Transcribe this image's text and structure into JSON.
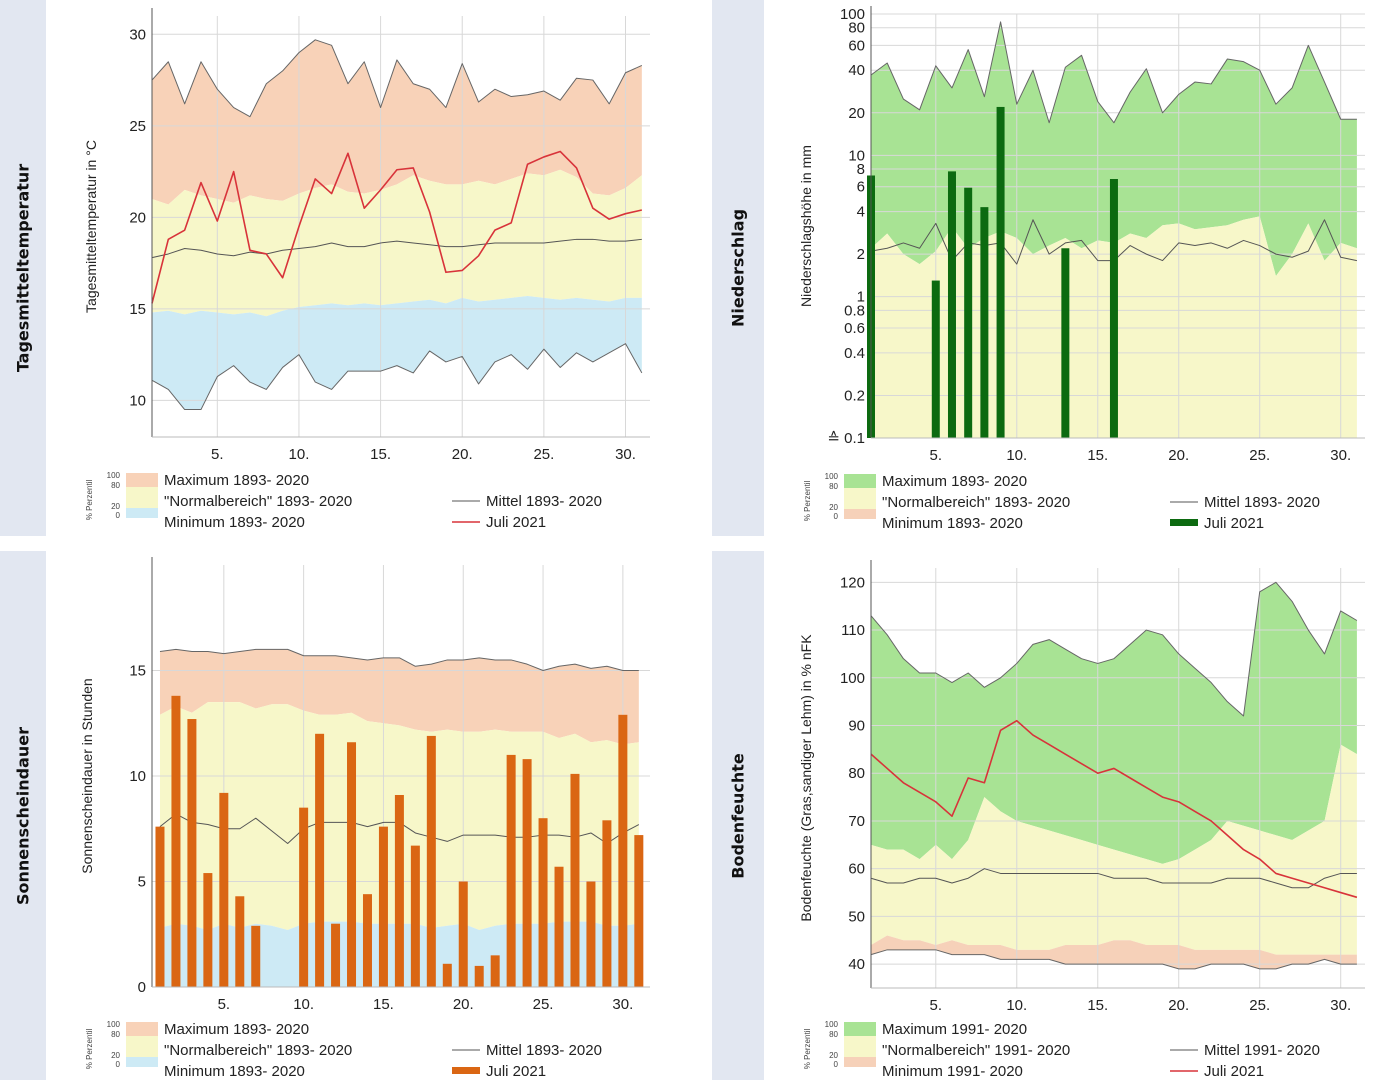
{
  "chart_data": [
    {
      "id": "temp",
      "type": "area",
      "section_label": "Tagesmitteltemperatur",
      "ylabel": "Tagesmitteltemperatur in °C",
      "xlabel": "",
      "log_scale": false,
      "ylim": [
        8,
        31
      ],
      "xlim": [
        1,
        31.5
      ],
      "yticks": [
        10,
        15,
        20,
        25,
        30
      ],
      "yticklabels": [
        "10",
        "15",
        "20",
        "25",
        "30"
      ],
      "xticks": [
        5,
        10,
        15,
        20,
        25,
        30
      ],
      "xticklabels": [
        "5.",
        "10.",
        "15.",
        "20.",
        "25.",
        "30."
      ],
      "days": [
        1,
        2,
        3,
        4,
        5,
        6,
        7,
        8,
        9,
        10,
        11,
        12,
        13,
        14,
        15,
        16,
        17,
        18,
        19,
        20,
        21,
        22,
        23,
        24,
        25,
        26,
        27,
        28,
        29,
        30,
        31
      ],
      "band_max": [
        27.5,
        28.5,
        26.2,
        28.5,
        27.0,
        26.0,
        25.5,
        27.3,
        28.0,
        29.0,
        29.7,
        29.4,
        27.3,
        28.5,
        26.0,
        28.6,
        27.3,
        27.0,
        26.0,
        28.4,
        26.3,
        27.0,
        26.6,
        26.7,
        26.9,
        26.4,
        27.6,
        27.5,
        26.2,
        27.9,
        28.3
      ],
      "band_normal_upper": [
        21.0,
        20.7,
        21.5,
        21.2,
        21.0,
        20.8,
        21.2,
        21.0,
        20.9,
        21.3,
        21.6,
        21.8,
        21.4,
        21.3,
        21.5,
        21.8,
        22.3,
        22.0,
        21.8,
        21.8,
        22.0,
        21.8,
        22.1,
        22.4,
        22.3,
        22.6,
        22.2,
        21.3,
        21.2,
        21.6,
        22.3
      ],
      "band_normal_lower": [
        14.8,
        14.9,
        14.7,
        14.9,
        14.8,
        14.7,
        14.8,
        14.6,
        14.9,
        15.1,
        15.2,
        15.3,
        15.2,
        15.3,
        15.2,
        15.3,
        15.4,
        15.5,
        15.3,
        15.6,
        15.4,
        15.5,
        15.6,
        15.7,
        15.6,
        15.5,
        15.6,
        15.5,
        15.4,
        15.6,
        15.6
      ],
      "band_min": [
        11.1,
        10.6,
        9.5,
        9.5,
        11.3,
        11.9,
        11.0,
        10.6,
        11.8,
        12.5,
        11.0,
        10.6,
        11.6,
        11.6,
        11.6,
        11.9,
        11.5,
        12.7,
        12.1,
        12.4,
        10.9,
        12.1,
        12.5,
        11.7,
        12.8,
        11.8,
        12.6,
        12.1,
        12.6,
        13.1,
        11.5
      ],
      "mean": [
        17.8,
        18.0,
        18.3,
        18.2,
        18.0,
        17.9,
        18.1,
        18.0,
        18.2,
        18.3,
        18.4,
        18.6,
        18.4,
        18.4,
        18.6,
        18.7,
        18.6,
        18.5,
        18.4,
        18.4,
        18.5,
        18.6,
        18.6,
        18.6,
        18.6,
        18.7,
        18.8,
        18.8,
        18.7,
        18.7,
        18.8
      ],
      "current": [
        15.3,
        18.8,
        19.3,
        21.9,
        19.8,
        22.5,
        18.2,
        18.0,
        16.7,
        19.5,
        22.1,
        21.3,
        23.5,
        20.5,
        21.5,
        22.6,
        22.7,
        20.3,
        17.0,
        17.1,
        17.9,
        19.3,
        19.7,
        22.9,
        23.3,
        23.6,
        22.7,
        20.5,
        19.9,
        20.2,
        20.4
      ],
      "current_style": "line",
      "colors": {
        "max": "#f8d2b8",
        "normal": "#f7f7c9",
        "min": "#cdeaf5",
        "mean": "#555555",
        "current": "#d8333a"
      },
      "legend": {
        "pct_axis_label": "% Perzentil",
        "pct_ticks": [
          "100",
          "80",
          "20",
          "0"
        ],
        "max_label": "Maximum 1893- 2020",
        "normal_label": "\"Normalbereich\" 1893- 2020",
        "min_label": "Minimum 1893- 2020",
        "mean_label": "Mittel 1893- 2020",
        "current_label": "Juli 2021"
      }
    },
    {
      "id": "precip",
      "type": "bar",
      "section_label": "Niederschlag",
      "ylabel": "Niederschlagshöhe in mm",
      "xlabel": "",
      "log_scale": true,
      "ylim": [
        0.1,
        100
      ],
      "xlim": [
        1,
        31.5
      ],
      "yticks": [
        0.1,
        0.2,
        0.4,
        0.6,
        0.8,
        1,
        2,
        4,
        6,
        8,
        10,
        20,
        40,
        60,
        80,
        100
      ],
      "yticklabels": [
        "≙ 0.1",
        "0.2",
        "0.4",
        "0.6",
        "0.8",
        "1",
        "2",
        "4",
        "6",
        "8",
        "10",
        "20",
        "40",
        "60",
        "80",
        "100"
      ],
      "xticks": [
        5,
        10,
        15,
        20,
        25,
        30
      ],
      "xticklabels": [
        "5.",
        "10.",
        "15.",
        "20.",
        "25.",
        "30."
      ],
      "days": [
        1,
        2,
        3,
        4,
        5,
        6,
        7,
        8,
        9,
        10,
        11,
        12,
        13,
        14,
        15,
        16,
        17,
        18,
        19,
        20,
        21,
        22,
        23,
        24,
        25,
        26,
        27,
        28,
        29,
        30,
        31
      ],
      "band_max": [
        37,
        45,
        25,
        21,
        43,
        30,
        56,
        26,
        88,
        23,
        40,
        17,
        42,
        51,
        24,
        17,
        28,
        41,
        20,
        27,
        33,
        32,
        48,
        46,
        40,
        23,
        30,
        60,
        33,
        18,
        18
      ],
      "band_normal_upper": [
        2.2,
        2.8,
        2.0,
        1.7,
        2.1,
        3.1,
        2.2,
        2.6,
        2.9,
        2.6,
        2.0,
        2.3,
        2.6,
        2.2,
        2.5,
        2.4,
        2.8,
        2.6,
        3.2,
        3.3,
        3.0,
        3.1,
        3.2,
        3.5,
        3.7,
        1.4,
        2.0,
        3.3,
        1.8,
        2.4,
        2.2
      ],
      "band_normal_lower": [
        0.1,
        0.1,
        0.1,
        0.1,
        0.1,
        0.1,
        0.1,
        0.1,
        0.1,
        0.1,
        0.1,
        0.1,
        0.1,
        0.1,
        0.1,
        0.1,
        0.1,
        0.1,
        0.1,
        0.1,
        0.1,
        0.1,
        0.1,
        0.1,
        0.1,
        0.1,
        0.1,
        0.1,
        0.1,
        0.1,
        0.1
      ],
      "band_min": [
        0.1,
        0.1,
        0.1,
        0.1,
        0.1,
        0.1,
        0.1,
        0.1,
        0.1,
        0.1,
        0.1,
        0.1,
        0.1,
        0.1,
        0.1,
        0.1,
        0.1,
        0.1,
        0.1,
        0.1,
        0.1,
        0.1,
        0.1,
        0.1,
        0.1,
        0.1,
        0.1,
        0.1,
        0.1,
        0.1,
        0.1
      ],
      "mean": [
        2.1,
        2.2,
        2.4,
        2.2,
        3.3,
        1.8,
        2.4,
        2.3,
        2.4,
        1.7,
        3.5,
        2.0,
        2.4,
        2.5,
        1.8,
        1.8,
        2.3,
        2.0,
        1.8,
        2.4,
        2.3,
        2.4,
        2.2,
        2.5,
        2.3,
        2.0,
        1.9,
        2.1,
        3.5,
        1.9,
        1.8
      ],
      "current": [
        7.2,
        0,
        0,
        0,
        1.3,
        7.7,
        5.9,
        4.3,
        22,
        0,
        0,
        0,
        2.2,
        0,
        0,
        6.8,
        0,
        0,
        0,
        0,
        0,
        0,
        0,
        0,
        0,
        0,
        0,
        0,
        0,
        0,
        0
      ],
      "current_style": "bars",
      "colors": {
        "max": "#a8e394",
        "normal": "#f7f7c9",
        "min": "#f6d1b9",
        "mean": "#555555",
        "current": "#0c6a10"
      },
      "legend": {
        "pct_axis_label": "% Perzentil",
        "pct_ticks": [
          "100",
          "80",
          "20",
          "0"
        ],
        "max_label": "Maximum 1893- 2020",
        "normal_label": "\"Normalbereich\" 1893- 2020",
        "min_label": "Minimum 1893- 2020",
        "mean_label": "Mittel 1893- 2020",
        "current_label": "Juli 2021"
      }
    },
    {
      "id": "sun",
      "type": "bar",
      "section_label": "Sonnenscheindauer",
      "ylabel": "Sonnenscheindauer in Stunden",
      "xlabel": "",
      "log_scale": false,
      "ylim": [
        0,
        20
      ],
      "xlim": [
        0.5,
        31.7
      ],
      "yticks": [
        0,
        5,
        10,
        15
      ],
      "yticklabels": [
        "0",
        "5",
        "10",
        "15"
      ],
      "xticks": [
        5,
        10,
        15,
        20,
        25,
        30
      ],
      "xticklabels": [
        "5.",
        "10.",
        "15.",
        "20.",
        "25.",
        "30."
      ],
      "days": [
        1,
        2,
        3,
        4,
        5,
        6,
        7,
        8,
        9,
        10,
        11,
        12,
        13,
        14,
        15,
        16,
        17,
        18,
        19,
        20,
        21,
        22,
        23,
        24,
        25,
        26,
        27,
        28,
        29,
        30,
        31
      ],
      "band_max": [
        15.9,
        16.0,
        15.9,
        15.9,
        15.8,
        15.9,
        16.0,
        16.0,
        16.0,
        15.7,
        15.7,
        15.7,
        15.6,
        15.5,
        15.6,
        15.6,
        15.2,
        15.3,
        15.5,
        15.5,
        15.6,
        15.5,
        15.5,
        15.3,
        15.0,
        15.2,
        15.3,
        15.1,
        15.2,
        15.0,
        15.0
      ],
      "band_normal_upper": [
        12.9,
        13.3,
        13.0,
        13.5,
        13.5,
        13.5,
        13.2,
        13.4,
        13.4,
        13.1,
        12.9,
        12.9,
        13.0,
        12.6,
        12.5,
        12.4,
        12.2,
        12.1,
        12.2,
        12.1,
        12.1,
        12.2,
        12.1,
        12.1,
        12.1,
        11.8,
        12.0,
        11.6,
        11.7,
        11.5,
        11.6
      ],
      "band_normal_lower": [
        2.8,
        3.0,
        2.9,
        2.7,
        3.0,
        2.8,
        3.0,
        2.9,
        2.7,
        3.0,
        3.1,
        3.1,
        3.1,
        3.0,
        3.0,
        3.0,
        3.0,
        2.8,
        2.9,
        3.0,
        2.7,
        2.9,
        3.0,
        3.0,
        3.0,
        3.1,
        3.1,
        3.1,
        2.9,
        2.9,
        3.0
      ],
      "band_min": [
        0,
        0,
        0,
        0,
        0,
        0,
        0,
        0,
        0,
        0,
        0,
        0,
        0,
        0,
        0,
        0,
        0,
        0,
        0,
        0,
        0,
        0,
        0,
        0,
        0,
        0,
        0,
        0,
        0,
        0,
        0
      ],
      "mean": [
        7.6,
        8.2,
        7.8,
        7.7,
        7.5,
        7.5,
        8.0,
        7.4,
        6.8,
        7.5,
        7.8,
        7.8,
        7.8,
        7.6,
        7.8,
        7.8,
        7.3,
        7.1,
        6.9,
        7.2,
        7.2,
        7.2,
        7.1,
        7.1,
        7.2,
        7.2,
        7.1,
        7.3,
        6.8,
        7.3,
        7.7
      ],
      "current": [
        7.6,
        13.8,
        12.7,
        5.4,
        9.2,
        4.3,
        2.9,
        0,
        0,
        8.5,
        12.0,
        3.0,
        11.6,
        4.4,
        7.6,
        9.1,
        6.7,
        11.9,
        1.1,
        5.0,
        1.0,
        1.5,
        11.0,
        10.8,
        8.0,
        5.7,
        10.1,
        5.0,
        7.9,
        12.9,
        7.2
      ],
      "current_style": "bars",
      "colors": {
        "max": "#f8d2b8",
        "normal": "#f7f7c9",
        "min": "#cdeaf5",
        "mean": "#555555",
        "current": "#da6613"
      },
      "legend": {
        "pct_axis_label": "% Perzentil",
        "pct_ticks": [
          "100",
          "80",
          "20",
          "0"
        ],
        "max_label": "Maximum 1893- 2020",
        "normal_label": "\"Normalbereich\" 1893- 2020",
        "min_label": "Minimum 1893- 2020",
        "mean_label": "Mittel 1893- 2020",
        "current_label": "Juli 2021"
      }
    },
    {
      "id": "soil",
      "type": "area",
      "section_label": "Bodenfeuchte",
      "ylabel": "Bodenfeuchte (Gras,sandiger Lehm) in % nFK",
      "xlabel": "",
      "log_scale": false,
      "ylim": [
        35,
        123
      ],
      "xlim": [
        1,
        31.5
      ],
      "yticks": [
        40,
        50,
        60,
        70,
        80,
        90,
        100,
        110,
        120
      ],
      "yticklabels": [
        "40",
        "50",
        "60",
        "70",
        "80",
        "90",
        "100",
        "110",
        "120"
      ],
      "xticks": [
        5,
        10,
        15,
        20,
        25,
        30
      ],
      "xticklabels": [
        "5.",
        "10.",
        "15.",
        "20.",
        "25.",
        "30."
      ],
      "days": [
        1,
        2,
        3,
        4,
        5,
        6,
        7,
        8,
        9,
        10,
        11,
        12,
        13,
        14,
        15,
        16,
        17,
        18,
        19,
        20,
        21,
        22,
        23,
        24,
        25,
        26,
        27,
        28,
        29,
        30,
        31
      ],
      "band_max": [
        113,
        109,
        104,
        101,
        101,
        99,
        101,
        98,
        100,
        103,
        107,
        108,
        106,
        104,
        103,
        104,
        107,
        110,
        109,
        105,
        102,
        99,
        95,
        92,
        118,
        120,
        116,
        110,
        105,
        114,
        112
      ],
      "band_normal_upper": [
        65,
        64,
        64,
        62,
        65,
        62,
        66,
        75,
        72,
        70,
        69,
        68,
        67,
        66,
        65,
        64,
        63,
        62,
        61,
        62,
        64,
        66,
        70,
        69,
        68,
        67,
        66,
        68,
        70,
        86,
        84
      ],
      "band_normal_lower": [
        44,
        46,
        45,
        45,
        44,
        45,
        44,
        44,
        44,
        43,
        43,
        43,
        44,
        44,
        44,
        45,
        45,
        44,
        44,
        44,
        43,
        43,
        43,
        43,
        43,
        42,
        42,
        42,
        42,
        42,
        42
      ],
      "band_min": [
        42,
        43,
        43,
        43,
        43,
        42,
        42,
        42,
        41,
        41,
        41,
        41,
        40,
        40,
        40,
        40,
        40,
        40,
        40,
        39,
        39,
        40,
        40,
        40,
        39,
        39,
        40,
        40,
        41,
        40,
        40
      ],
      "mean": [
        58,
        57,
        57,
        58,
        58,
        57,
        58,
        60,
        59,
        59,
        59,
        59,
        59,
        59,
        59,
        58,
        58,
        58,
        57,
        57,
        57,
        57,
        58,
        58,
        58,
        57,
        56,
        56,
        58,
        59,
        59
      ],
      "current": [
        84,
        81,
        78,
        76,
        74,
        71,
        79,
        78,
        89,
        91,
        88,
        86,
        84,
        82,
        80,
        81,
        79,
        77,
        75,
        74,
        72,
        70,
        67,
        64,
        62,
        59,
        58,
        57,
        56,
        55,
        54
      ],
      "current_style": "line",
      "colors": {
        "max": "#a8e394",
        "normal": "#f7f7c9",
        "min": "#f6d1b9",
        "mean": "#555555",
        "current": "#d8333a"
      },
      "legend": {
        "pct_axis_label": "% Perzentil",
        "pct_ticks": [
          "100",
          "80",
          "20",
          "0"
        ],
        "max_label": "Maximum 1991- 2020",
        "normal_label": "\"Normalbereich\" 1991- 2020",
        "min_label": "Minimum 1991- 2020",
        "mean_label": "Mittel 1991- 2020",
        "current_label": "Juli 2021"
      }
    }
  ]
}
